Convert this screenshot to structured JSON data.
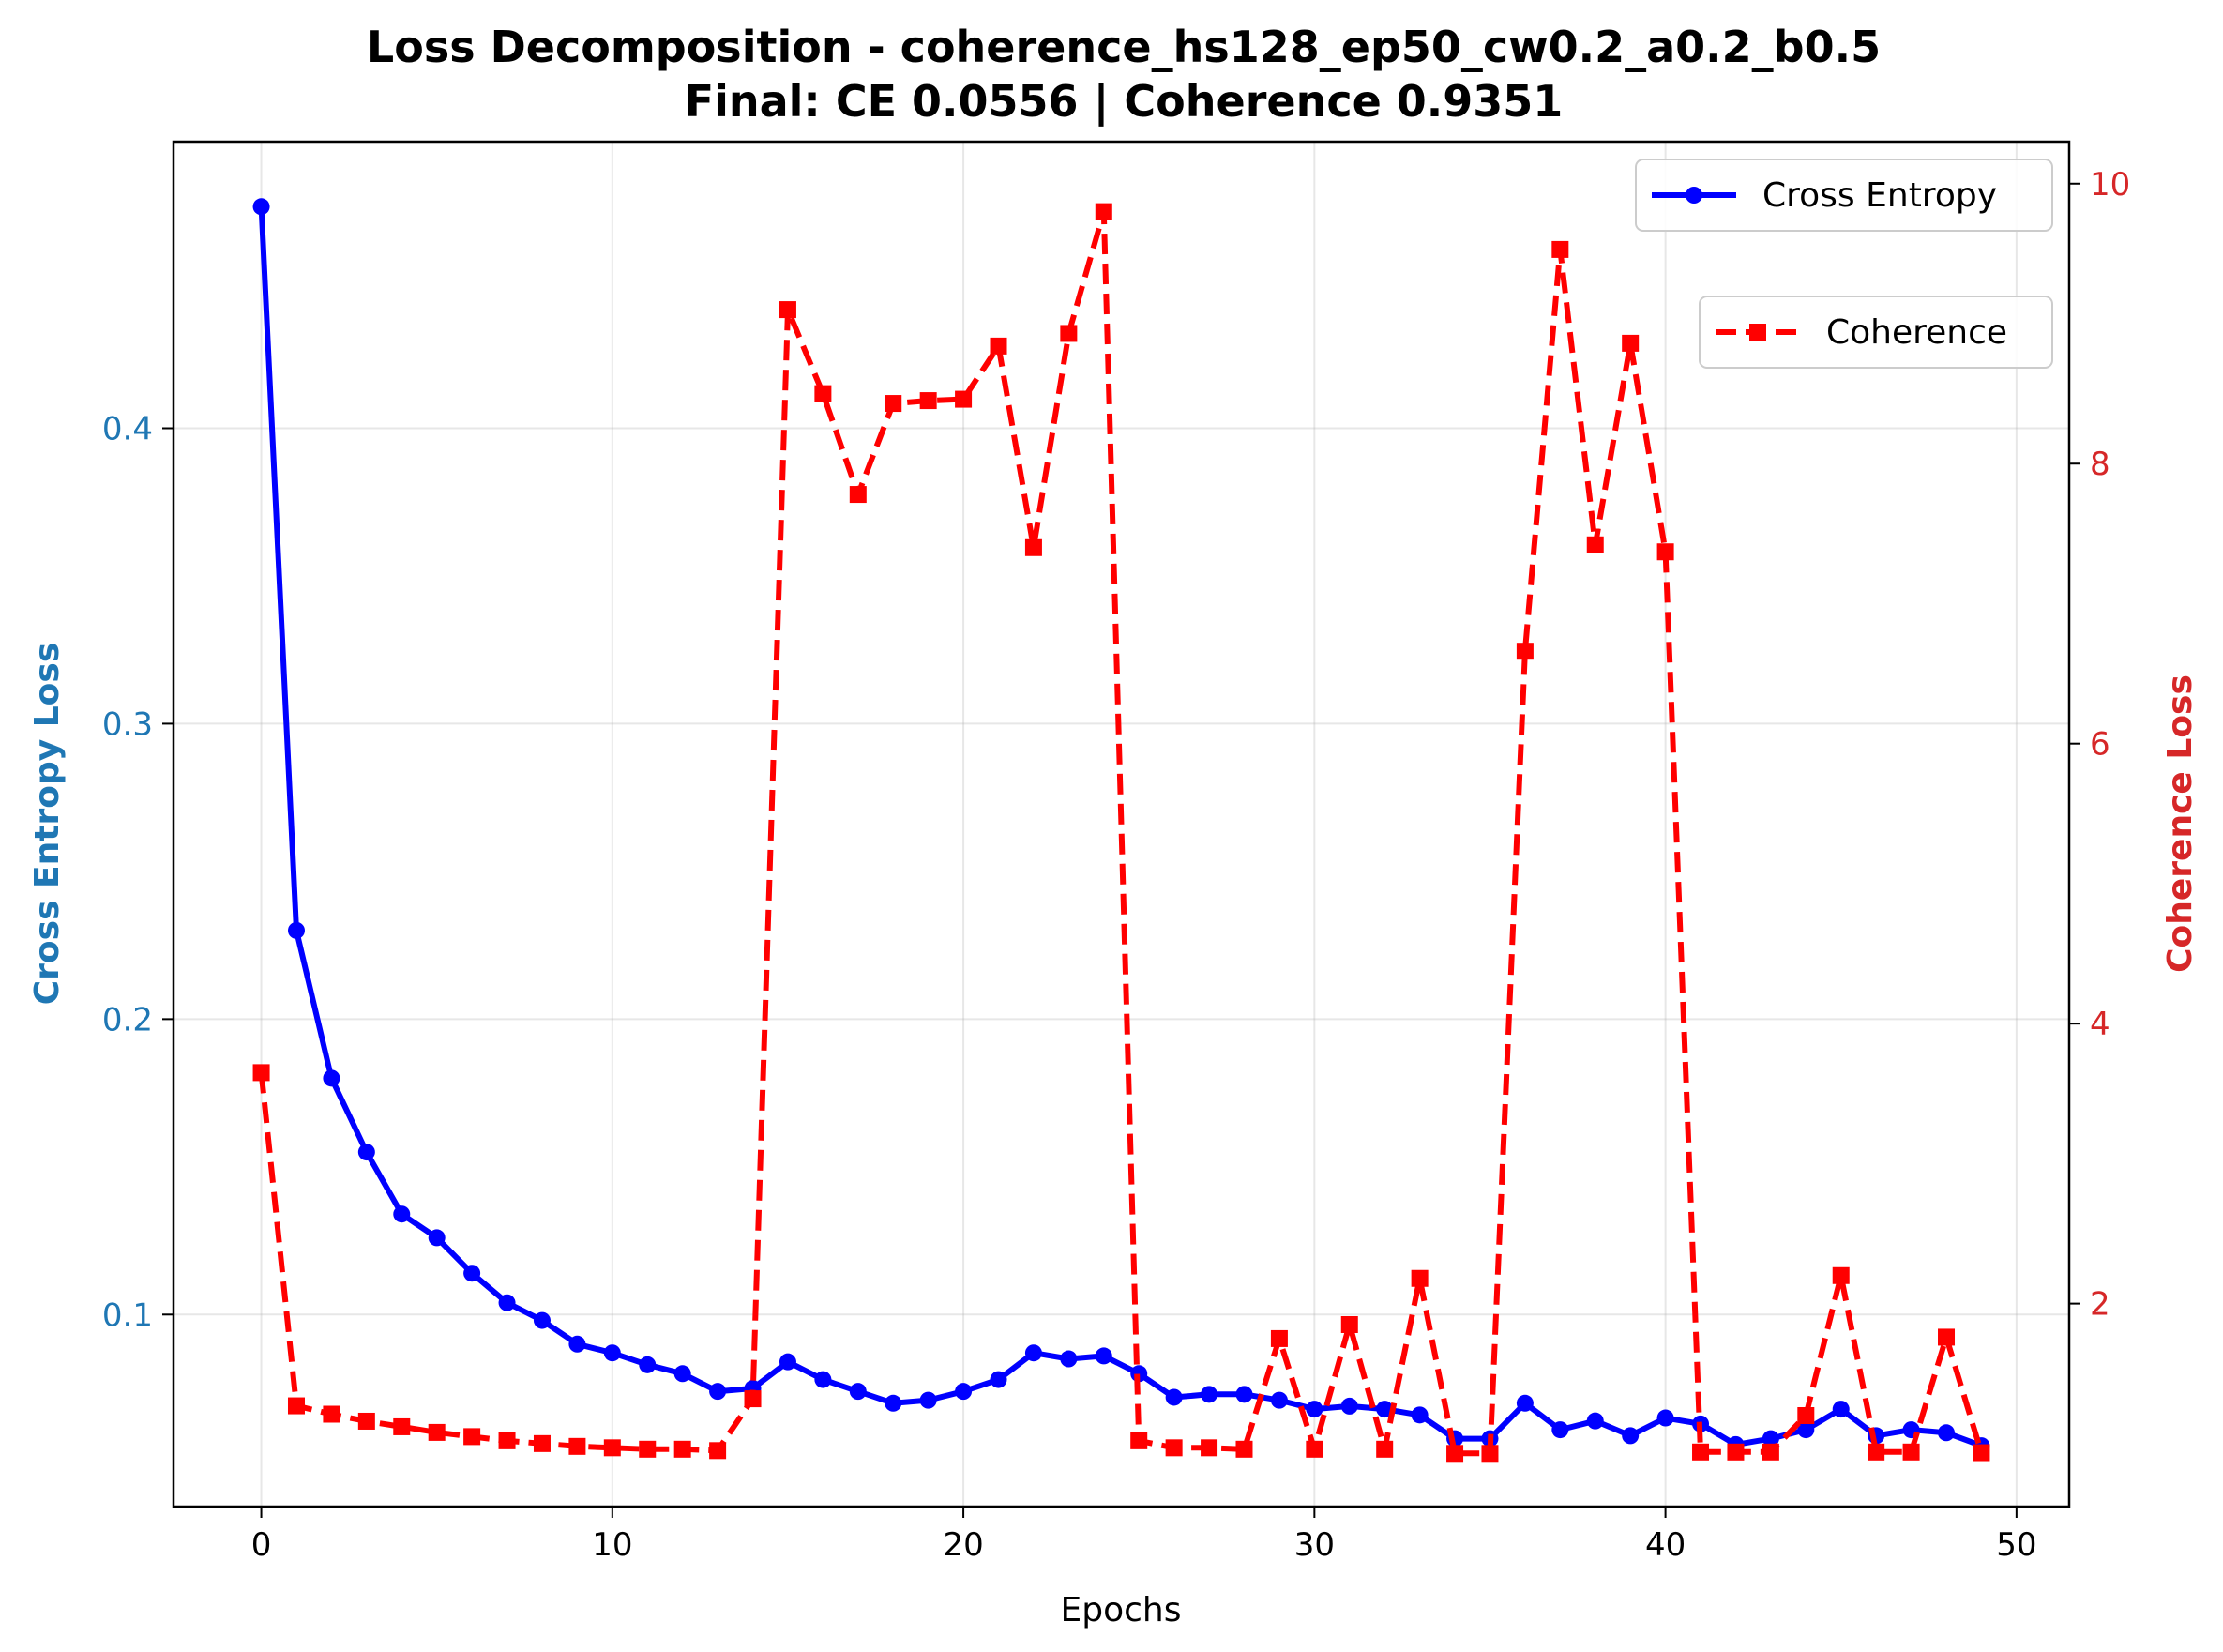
{
  "chart_data": {
    "type": "line",
    "title": "Loss Decomposition - coherence_hs128_ep50_cw0.2_a0.2_b0.5",
    "subtitle": "Final: CE 0.0556 | Coherence 0.9351",
    "xlabel": "Epochs",
    "ylabel_left": "Cross Entropy Loss",
    "ylabel_right": "Coherence Loss",
    "xlim": [
      -2.5,
      51.5
    ],
    "ylim_left": [
      0.035,
      0.497
    ],
    "ylim_right": [
      0.55,
      10.3
    ],
    "x_ticks": [
      0,
      10,
      20,
      30,
      40,
      50
    ],
    "y_ticks_left": [
      0.1,
      0.2,
      0.3,
      0.4
    ],
    "y_ticks_right": [
      2,
      4,
      6,
      8,
      10
    ],
    "grid": true,
    "colors": {
      "left_axis": "#1f77b4",
      "right_axis": "#d62728"
    },
    "x": [
      0,
      1,
      2,
      3,
      4,
      5,
      6,
      7,
      8,
      9,
      10,
      11,
      12,
      13,
      14,
      15,
      16,
      17,
      18,
      19,
      20,
      21,
      22,
      23,
      24,
      25,
      26,
      27,
      28,
      29,
      30,
      31,
      32,
      33,
      34,
      35,
      36,
      37,
      38,
      39,
      40,
      41,
      42,
      43,
      44,
      45,
      46,
      47,
      48,
      49
    ],
    "series": [
      {
        "name": "Cross Entropy",
        "axis": "left",
        "color": "#0000ff",
        "line_style": "solid",
        "marker": "circle",
        "values": [
          0.475,
          0.23,
          0.18,
          0.155,
          0.134,
          0.126,
          0.114,
          0.104,
          0.098,
          0.09,
          0.087,
          0.083,
          0.08,
          0.074,
          0.075,
          0.084,
          0.078,
          0.074,
          0.07,
          0.071,
          0.074,
          0.078,
          0.087,
          0.085,
          0.086,
          0.08,
          0.072,
          0.073,
          0.073,
          0.071,
          0.068,
          0.069,
          0.068,
          0.066,
          0.058,
          0.058,
          0.07,
          0.061,
          0.064,
          0.059,
          0.065,
          0.063,
          0.056,
          0.058,
          0.061,
          0.068,
          0.059,
          0.061,
          0.06,
          0.0556
        ]
      },
      {
        "name": "Coherence",
        "axis": "right",
        "color": "#ff0000",
        "line_style": "dashed",
        "marker": "square",
        "values": [
          3.65,
          1.27,
          1.21,
          1.16,
          1.12,
          1.08,
          1.05,
          1.02,
          1.0,
          0.98,
          0.97,
          0.96,
          0.96,
          0.95,
          1.32,
          9.1,
          8.5,
          7.78,
          8.43,
          8.45,
          8.46,
          8.84,
          7.4,
          8.93,
          9.8,
          1.02,
          0.97,
          0.97,
          0.96,
          1.75,
          0.96,
          1.85,
          0.96,
          2.18,
          0.93,
          0.93,
          6.66,
          9.53,
          7.42,
          8.86,
          7.37,
          0.94,
          0.94,
          0.94,
          1.2,
          2.2,
          0.94,
          0.94,
          1.76,
          0.9351
        ]
      }
    ],
    "legend": {
      "placement": "top-right",
      "entries": [
        "Cross Entropy",
        "Coherence"
      ]
    }
  }
}
